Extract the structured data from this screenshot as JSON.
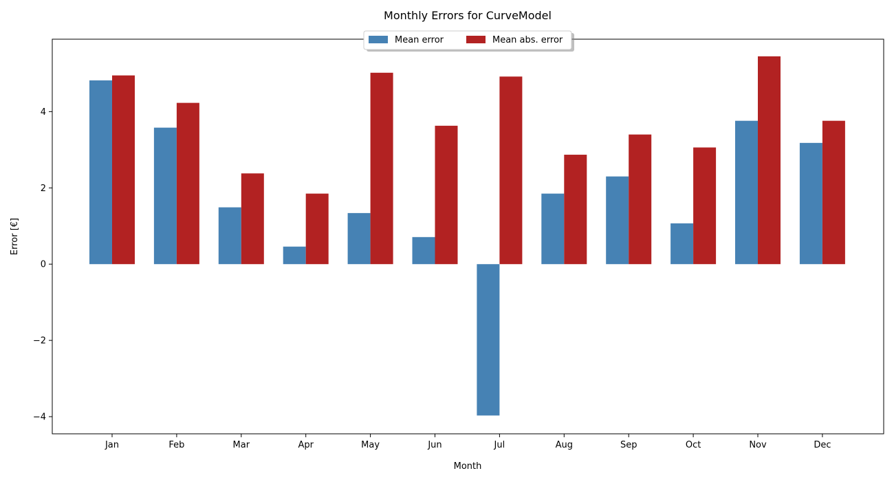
{
  "chart_data": {
    "type": "bar",
    "title": "Monthly Errors for CurveModel",
    "xlabel": "Month",
    "ylabel": "Error [€]",
    "categories": [
      "Jan",
      "Feb",
      "Mar",
      "Apr",
      "May",
      "Jun",
      "Jul",
      "Aug",
      "Sep",
      "Oct",
      "Nov",
      "Dec"
    ],
    "series": [
      {
        "name": "Mean error",
        "color": "#4682b4",
        "values": [
          4.82,
          3.58,
          1.49,
          0.46,
          1.34,
          0.71,
          -3.97,
          1.85,
          2.3,
          1.07,
          3.76,
          3.18
        ]
      },
      {
        "name": "Mean abs. error",
        "color": "#b22222",
        "values": [
          4.95,
          4.23,
          2.38,
          1.85,
          5.02,
          3.63,
          4.92,
          2.87,
          3.4,
          3.06,
          5.45,
          3.76
        ]
      }
    ],
    "ylim": [
      -4.45,
      5.9
    ],
    "yticks": [
      -4,
      -2,
      0,
      2,
      4
    ],
    "ytick_labels": [
      "−4",
      "−2",
      "0",
      "2",
      "4"
    ],
    "legend_position": "top-center",
    "grid": false
  }
}
